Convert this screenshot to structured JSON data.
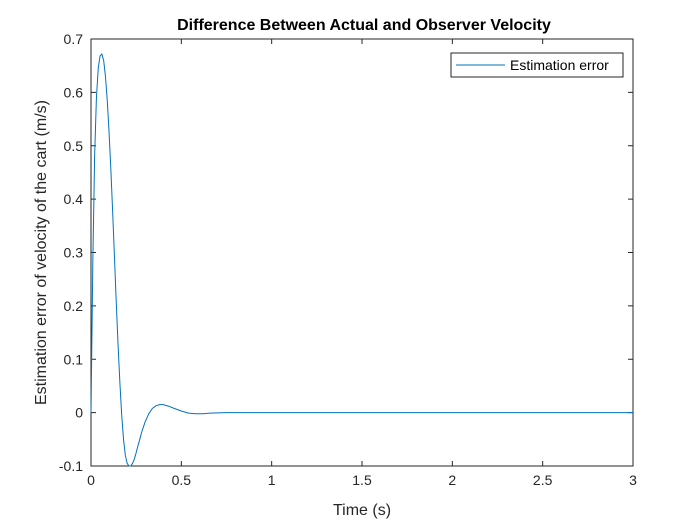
{
  "chart_data": {
    "type": "line",
    "title": "Difference Between Actual and Observer Velocity",
    "xlabel": "Time (s)",
    "ylabel": "Estimation error of velocity of the cart (m/s)",
    "xlim": [
      0,
      3
    ],
    "ylim": [
      -0.1,
      0.7
    ],
    "xticks": [
      0,
      0.5,
      1,
      1.5,
      2,
      2.5,
      3
    ],
    "xtick_labels": [
      "0",
      "0.5",
      "1",
      "1.5",
      "2",
      "2.5",
      "3"
    ],
    "yticks": [
      -0.1,
      0,
      0.1,
      0.2,
      0.3,
      0.4,
      0.5,
      0.6,
      0.7
    ],
    "ytick_labels": [
      "-0.1",
      "0",
      "0.1",
      "0.2",
      "0.3",
      "0.4",
      "0.5",
      "0.6",
      "0.7"
    ],
    "grid": false,
    "legend_position": "top-right",
    "series": [
      {
        "name": "Estimation error",
        "color": "#0072BD",
        "x": [
          0,
          0.005,
          0.01,
          0.02,
          0.03,
          0.04,
          0.05,
          0.06,
          0.07,
          0.08,
          0.09,
          0.1,
          0.11,
          0.12,
          0.13,
          0.14,
          0.15,
          0.16,
          0.17,
          0.18,
          0.19,
          0.2,
          0.21,
          0.22,
          0.23,
          0.24,
          0.25,
          0.26,
          0.27,
          0.28,
          0.3,
          0.32,
          0.34,
          0.36,
          0.38,
          0.4,
          0.43,
          0.46,
          0.5,
          0.54,
          0.58,
          0.62,
          0.66,
          0.7,
          0.75,
          0.8,
          0.9,
          1.0,
          1.5,
          2.0,
          2.5,
          3.0
        ],
        "y": [
          0,
          0.14,
          0.28,
          0.48,
          0.59,
          0.645,
          0.668,
          0.672,
          0.66,
          0.63,
          0.585,
          0.525,
          0.455,
          0.375,
          0.29,
          0.205,
          0.125,
          0.055,
          -0.005,
          -0.05,
          -0.08,
          -0.095,
          -0.1,
          -0.1,
          -0.095,
          -0.087,
          -0.075,
          -0.062,
          -0.05,
          -0.037,
          -0.017,
          -0.002,
          0.008,
          0.013,
          0.015,
          0.015,
          0.012,
          0.008,
          0.003,
          -0.001,
          -0.002,
          -0.002,
          -0.001,
          -0.0005,
          0,
          0,
          0,
          0,
          0,
          0,
          0,
          0
        ]
      }
    ]
  }
}
